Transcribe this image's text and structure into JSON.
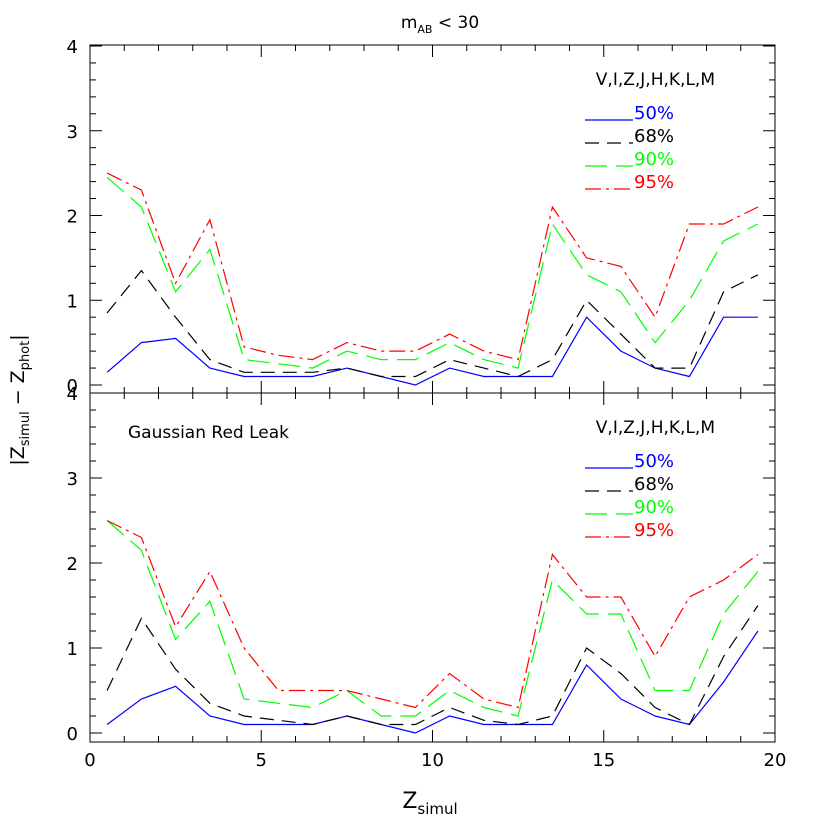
{
  "chart_data": [
    {
      "type": "line",
      "title_main": "m",
      "title_sub": "AB",
      "title_rest": " < 30",
      "annotation": "",
      "bands": "V,I,Z,J,H,K,L,M",
      "x": [
        0.5,
        1.5,
        2.5,
        3.5,
        4.5,
        5.5,
        6.5,
        7.5,
        8.5,
        9.5,
        10.5,
        11.5,
        12.5,
        13.5,
        14.5,
        15.5,
        16.5,
        17.5,
        18.5,
        19.5
      ],
      "xlim": [
        0,
        20
      ],
      "ylim": [
        0,
        4
      ],
      "yticks": [
        "0",
        "1",
        "2",
        "3",
        "4"
      ],
      "series": [
        {
          "name": "50%",
          "color": "#0000ff",
          "dash": "solid",
          "values": [
            0.15,
            0.5,
            0.55,
            0.2,
            0.1,
            0.1,
            0.1,
            0.2,
            0.1,
            0.0,
            0.2,
            0.1,
            0.1,
            0.1,
            0.8,
            0.4,
            0.2,
            0.1,
            0.8,
            0.8
          ]
        },
        {
          "name": "68%",
          "color": "#000000",
          "dash": "dashed",
          "values": [
            0.85,
            1.35,
            0.8,
            0.3,
            0.15,
            0.15,
            0.15,
            0.2,
            0.1,
            0.1,
            0.3,
            0.2,
            0.1,
            0.3,
            1.0,
            0.6,
            0.2,
            0.2,
            1.1,
            1.3
          ]
        },
        {
          "name": "90%",
          "color": "#00ff00",
          "dash": "longdash",
          "values": [
            2.45,
            2.1,
            1.1,
            1.6,
            0.3,
            0.25,
            0.2,
            0.4,
            0.3,
            0.3,
            0.5,
            0.3,
            0.2,
            1.9,
            1.3,
            1.1,
            0.5,
            1.0,
            1.7,
            1.9
          ]
        },
        {
          "name": "95%",
          "color": "#ff0000",
          "dash": "dashdot",
          "values": [
            2.5,
            2.3,
            1.2,
            1.95,
            0.45,
            0.35,
            0.3,
            0.5,
            0.4,
            0.4,
            0.6,
            0.4,
            0.3,
            2.1,
            1.5,
            1.4,
            0.8,
            1.9,
            1.9,
            2.1
          ]
        }
      ]
    },
    {
      "type": "line",
      "title_main": "",
      "title_sub": "",
      "title_rest": "",
      "annotation": "Gaussian Red Leak",
      "bands": "V,I,Z,J,H,K,L,M",
      "x": [
        0.5,
        1.5,
        2.5,
        3.5,
        4.5,
        5.5,
        6.5,
        7.5,
        8.5,
        9.5,
        10.5,
        11.5,
        12.5,
        13.5,
        14.5,
        15.5,
        16.5,
        17.5,
        18.5,
        19.5
      ],
      "xlim": [
        0,
        20
      ],
      "ylim": [
        0,
        4
      ],
      "yticks": [
        "0",
        "1",
        "2",
        "3",
        "4"
      ],
      "xticks": [
        "0",
        "5",
        "10",
        "15",
        "20"
      ],
      "series": [
        {
          "name": "50%",
          "color": "#0000ff",
          "dash": "solid",
          "values": [
            0.1,
            0.4,
            0.55,
            0.2,
            0.1,
            0.1,
            0.1,
            0.2,
            0.1,
            0.0,
            0.2,
            0.1,
            0.1,
            0.1,
            0.8,
            0.4,
            0.2,
            0.1,
            0.6,
            1.2
          ]
        },
        {
          "name": "68%",
          "color": "#000000",
          "dash": "dashed",
          "values": [
            0.5,
            1.35,
            0.75,
            0.35,
            0.2,
            0.15,
            0.1,
            0.2,
            0.1,
            0.1,
            0.3,
            0.15,
            0.1,
            0.2,
            1.0,
            0.7,
            0.3,
            0.1,
            0.9,
            1.5
          ]
        },
        {
          "name": "90%",
          "color": "#00ff00",
          "dash": "longdash",
          "values": [
            2.5,
            2.15,
            1.1,
            1.55,
            0.4,
            0.35,
            0.3,
            0.5,
            0.2,
            0.2,
            0.5,
            0.3,
            0.2,
            1.8,
            1.4,
            1.4,
            0.5,
            0.5,
            1.4,
            1.9
          ]
        },
        {
          "name": "95%",
          "color": "#ff0000",
          "dash": "dashdot",
          "values": [
            2.5,
            2.3,
            1.25,
            1.9,
            1.0,
            0.5,
            0.5,
            0.5,
            0.4,
            0.3,
            0.7,
            0.4,
            0.3,
            2.1,
            1.6,
            1.6,
            0.9,
            1.6,
            1.8,
            2.1
          ]
        }
      ]
    }
  ],
  "axes": {
    "ylabel_main": "|Z",
    "ylabel_sub1": "simul",
    "ylabel_mid": " − Z",
    "ylabel_sub2": "phot",
    "ylabel_end": "|",
    "xlabel_main": "Z",
    "xlabel_sub": "simul"
  }
}
